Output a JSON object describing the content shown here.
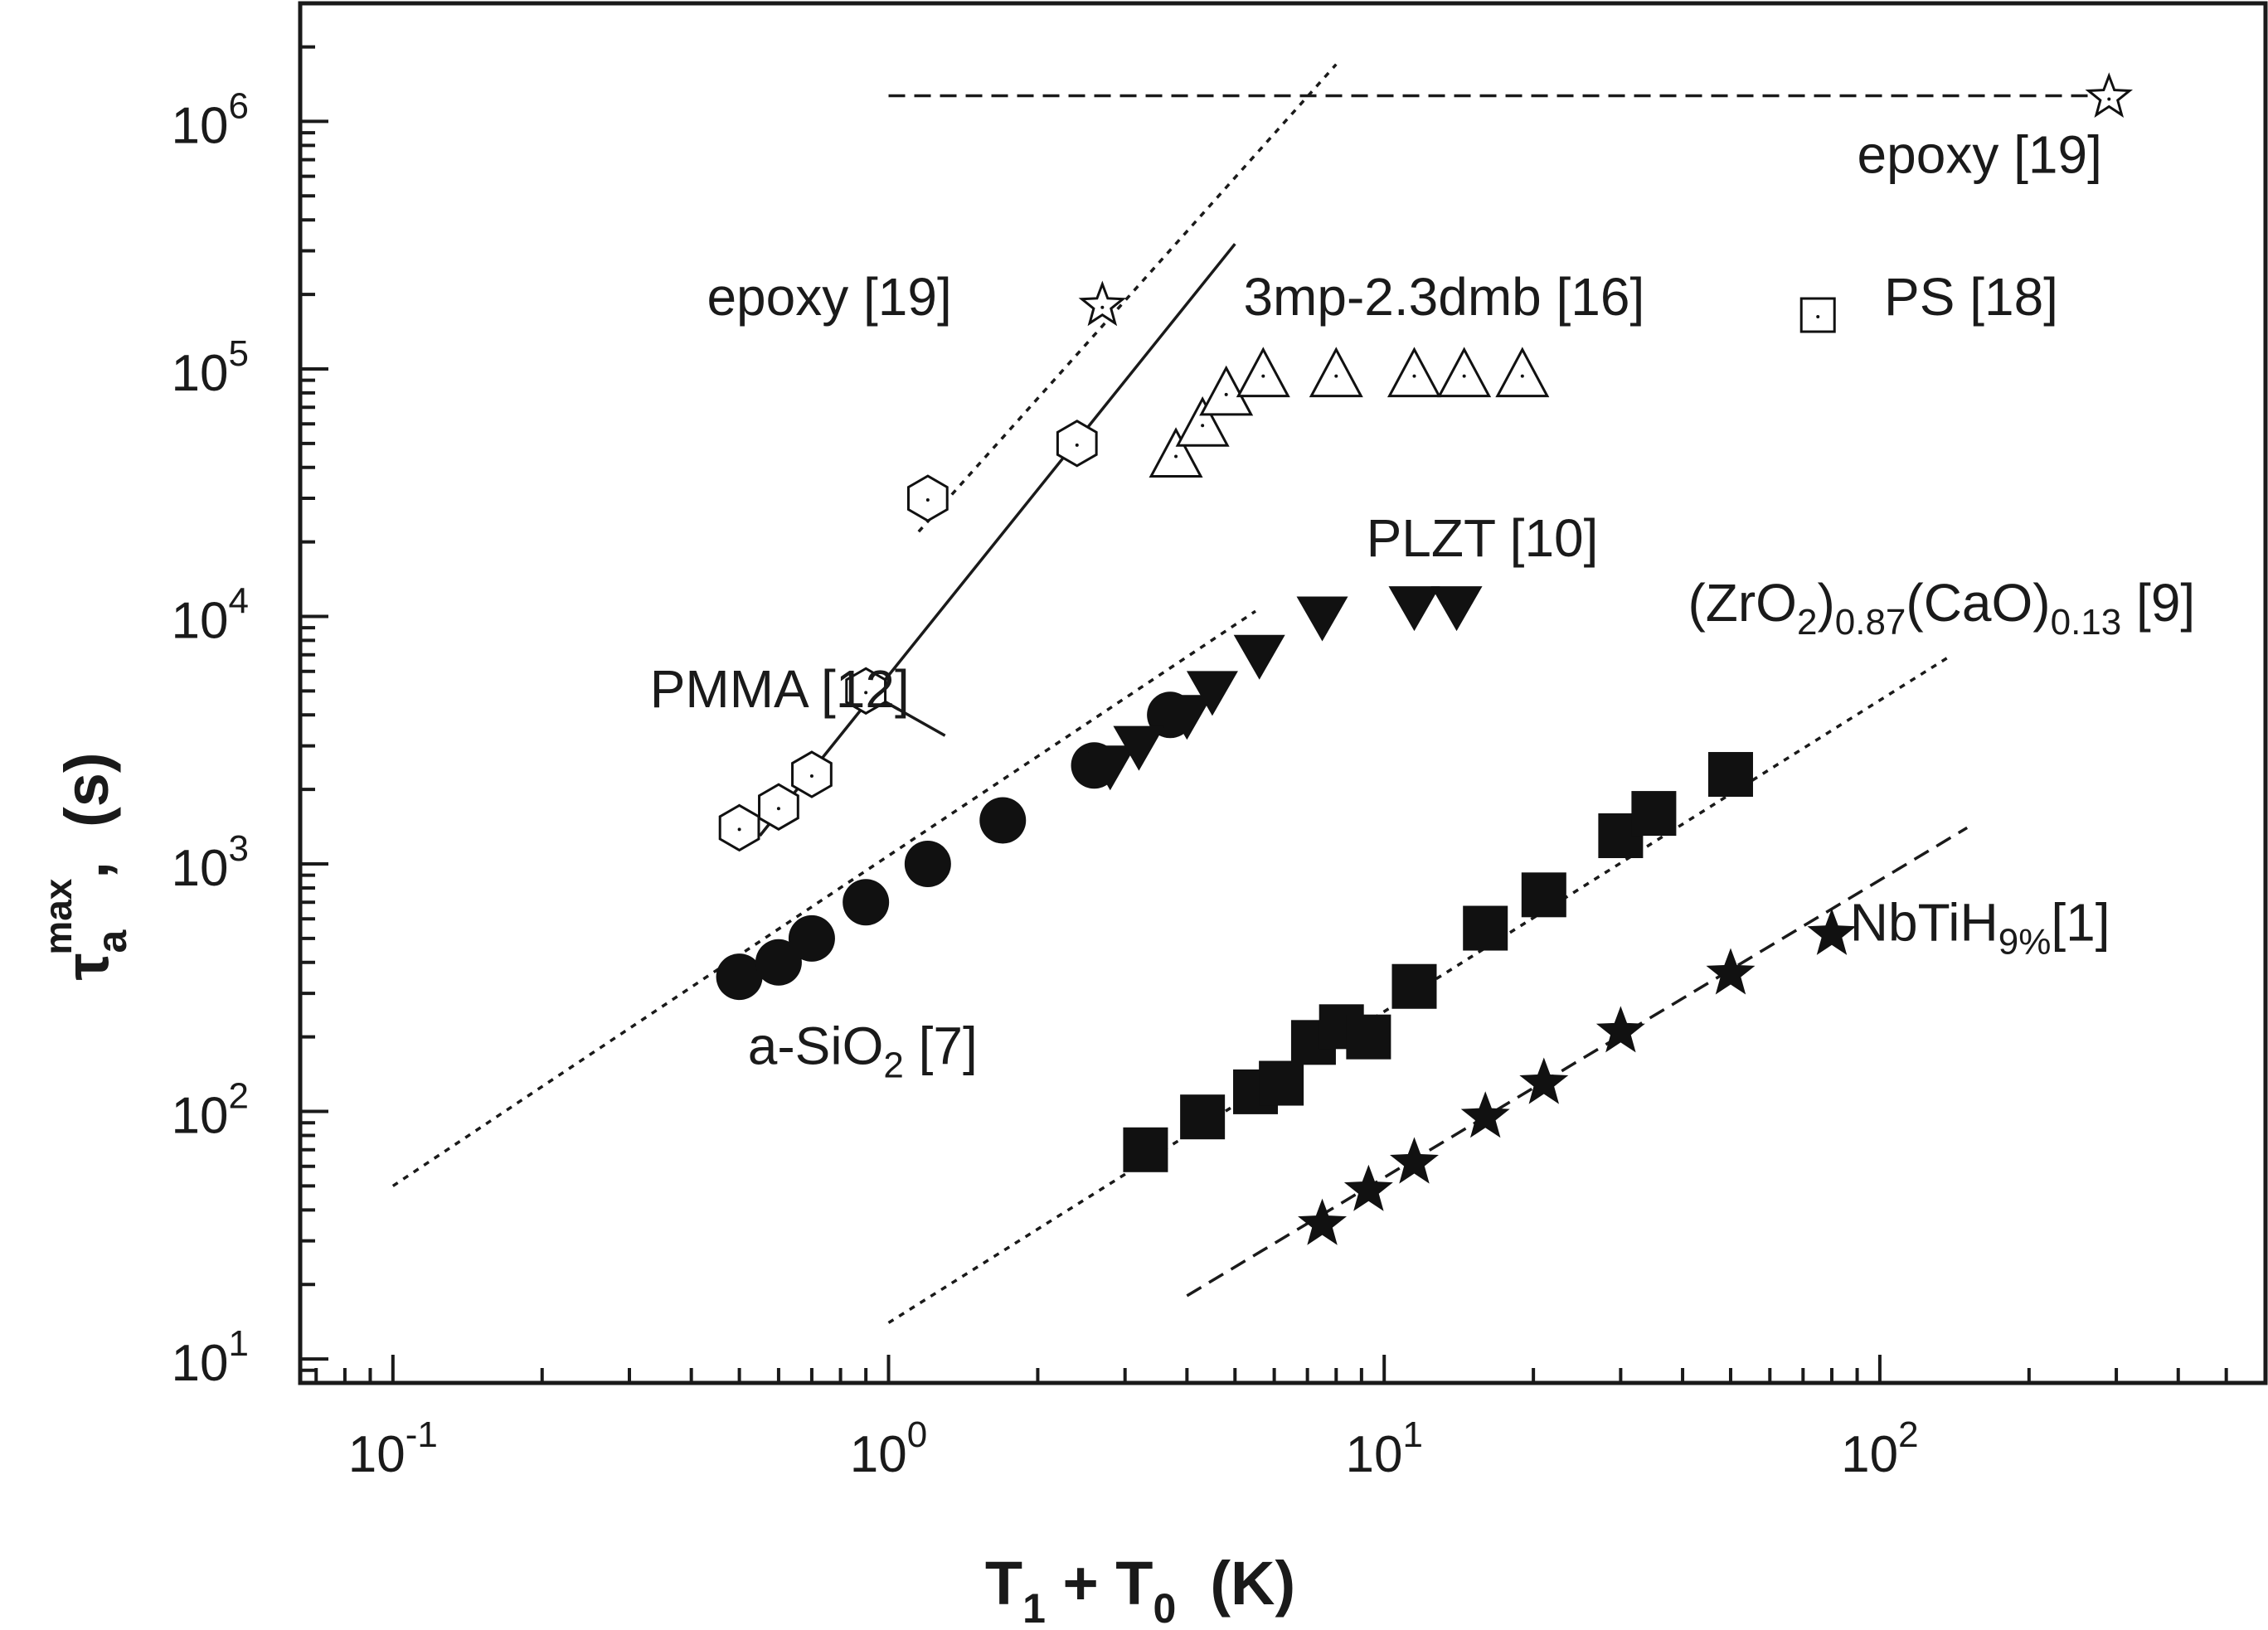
{
  "chart_data": {
    "type": "scatter",
    "x_scale": "log",
    "y_scale": "log",
    "xlim": [
      0.065,
      600
    ],
    "ylim": [
      8,
      3000000
    ],
    "xlabel": {
      "main1": "T",
      "sub1": "1",
      "mid": " + T",
      "sub2": "0",
      "end": "  (K)"
    },
    "ylabel": {
      "sym": "τ",
      "sub": "a",
      "sup": "max",
      "end": ",  (s)"
    },
    "x_ticks": [
      {
        "value": 0.1,
        "base": "10",
        "exp": "-1"
      },
      {
        "value": 1,
        "base": "10",
        "exp": "0"
      },
      {
        "value": 10,
        "base": "10",
        "exp": "1"
      },
      {
        "value": 100,
        "base": "10",
        "exp": "2"
      }
    ],
    "y_ticks": [
      {
        "value": 10,
        "base": "10",
        "exp": "1"
      },
      {
        "value": 100,
        "base": "10",
        "exp": "2"
      },
      {
        "value": 1000,
        "base": "10",
        "exp": "3"
      },
      {
        "value": 10000,
        "base": "10",
        "exp": "4"
      },
      {
        "value": 100000,
        "base": "10",
        "exp": "5"
      },
      {
        "value": 1000000,
        "base": "10",
        "exp": "6"
      }
    ],
    "series": [
      {
        "name": "a-SiO2 [7]",
        "marker": "circle",
        "filled": true,
        "points": [
          [
            0.5,
            350
          ],
          [
            0.6,
            400
          ],
          [
            0.7,
            500
          ],
          [
            0.9,
            700
          ],
          [
            1.2,
            1000
          ],
          [
            1.7,
            1500
          ],
          [
            2.6,
            2500
          ],
          [
            3.7,
            4000
          ]
        ]
      },
      {
        "name": "PLZT [10]",
        "marker": "triangle-down",
        "filled": true,
        "points": [
          [
            2.8,
            2500
          ],
          [
            3.2,
            3000
          ],
          [
            4.0,
            4000
          ],
          [
            4.5,
            5000
          ],
          [
            5.6,
            7000
          ],
          [
            7.5,
            10000
          ],
          [
            11.5,
            11000
          ],
          [
            14,
            11000
          ]
        ]
      },
      {
        "name": "(ZrO2)0.87(CaO)0.13 [9]",
        "marker": "square",
        "filled": true,
        "points": [
          [
            3.3,
            70
          ],
          [
            4.3,
            95
          ],
          [
            5.5,
            120
          ],
          [
            6.2,
            130
          ],
          [
            7.2,
            190
          ],
          [
            8.2,
            220
          ],
          [
            9.3,
            200
          ],
          [
            11.5,
            320
          ],
          [
            16,
            550
          ],
          [
            21,
            750
          ],
          [
            30,
            1300
          ],
          [
            35,
            1600
          ],
          [
            50,
            2300
          ]
        ]
      },
      {
        "name": "NbTiH9% [1]",
        "marker": "star",
        "filled": true,
        "points": [
          [
            7.5,
            35
          ],
          [
            9.3,
            48
          ],
          [
            11.5,
            62
          ],
          [
            16,
            95
          ],
          [
            21,
            130
          ],
          [
            30,
            210
          ],
          [
            50,
            360
          ],
          [
            80,
            520
          ]
        ]
      },
      {
        "name": "PMMA [12]",
        "marker": "hexagon",
        "filled": false,
        "points": [
          [
            0.5,
            1400
          ],
          [
            0.6,
            1700
          ],
          [
            0.7,
            2300
          ],
          [
            0.9,
            5000
          ],
          [
            2.4,
            50000
          ]
        ]
      },
      {
        "name": "epoxy [19]",
        "marker": "hexagon",
        "filled": false,
        "points": [
          [
            1.2,
            30000
          ]
        ]
      },
      {
        "name": "3mp-2.3dmb [16]",
        "marker": "triangle-up",
        "filled": false,
        "points": [
          [
            3.8,
            45000
          ],
          [
            4.3,
            60000
          ],
          [
            4.8,
            80000
          ],
          [
            5.7,
            95000
          ],
          [
            8,
            95000
          ],
          [
            11.5,
            95000
          ],
          [
            14.5,
            95000
          ],
          [
            19,
            95000
          ]
        ]
      },
      {
        "name": "epoxy [19] star (open)",
        "marker": "star",
        "filled": false,
        "points": [
          [
            2.7,
            180000
          ],
          [
            290,
            1250000
          ]
        ]
      },
      {
        "name": "PS [18]",
        "marker": "square",
        "filled": false,
        "points": []
      }
    ],
    "fit_lines": [
      {
        "style": "dotted",
        "from": [
          0.1,
          50
        ],
        "to": [
          5.5,
          10500
        ]
      },
      {
        "style": "dotted",
        "from": [
          1.0,
          14
        ],
        "to": [
          140,
          7000
        ]
      },
      {
        "style": "dashed",
        "from": [
          4.0,
          18
        ],
        "to": [
          150,
          1400
        ]
      },
      {
        "style": "solid",
        "from": [
          0.55,
          1300
        ],
        "to": [
          5.0,
          320000
        ]
      },
      {
        "style": "dotted",
        "from": [
          1.15,
          22000
        ],
        "to": [
          8,
          1700000
        ]
      },
      {
        "style": "dashed",
        "from": [
          1.0,
          1270000
        ],
        "to": [
          290,
          1270000
        ]
      },
      {
        "style": "solid",
        "from": [
          0.9,
          5000
        ],
        "to": [
          1.05,
          4200
        ]
      },
      {
        "style": "solid",
        "from": [
          0.9,
          5000
        ],
        "to": [
          1.3,
          3300
        ]
      }
    ],
    "annotations": [
      {
        "id": "epoxy-top-right",
        "x": 90,
        "y": 620000,
        "parts": [
          {
            "t": "epoxy [19]"
          }
        ]
      },
      {
        "id": "epoxy-left",
        "x": 0.43,
        "y": 165000,
        "parts": [
          {
            "t": "epoxy [19]"
          }
        ]
      },
      {
        "id": "3mp",
        "x": 5.2,
        "y": 165000,
        "parts": [
          {
            "t": "3mp-2.3dmb [16]"
          }
        ]
      },
      {
        "id": "ps",
        "x": 102,
        "y": 165000,
        "parts": [
          {
            "t": "PS [18]"
          }
        ]
      },
      {
        "id": "plzt",
        "x": 9.2,
        "y": 17500,
        "parts": [
          {
            "t": "PLZT [10]"
          }
        ]
      },
      {
        "id": "zro2",
        "x": 41,
        "y": 9600,
        "parts": [
          {
            "t": "(ZrO"
          },
          {
            "t": "2",
            "sub": true
          },
          {
            "t": ")"
          },
          {
            "t": "0.87",
            "sub": true
          },
          {
            "t": "(CaO)"
          },
          {
            "t": "0.13",
            "sub": true
          },
          {
            "t": " [9]"
          }
        ]
      },
      {
        "id": "pmma",
        "x": 0.33,
        "y": 4300,
        "parts": [
          {
            "t": "PMMA [12]"
          }
        ]
      },
      {
        "id": "nbtih",
        "x": 87,
        "y": 490,
        "parts": [
          {
            "t": "NbTiH"
          },
          {
            "t": "9%",
            "sub": true
          },
          {
            "t": "[1]"
          }
        ]
      },
      {
        "id": "asio2",
        "x": 0.52,
        "y": 155,
        "parts": [
          {
            "t": "a-SiO"
          },
          {
            "t": "2",
            "sub": true
          },
          {
            "t": " [7]"
          }
        ]
      }
    ],
    "legend_marker_ps": {
      "x": 75,
      "y": 165000
    },
    "grid": false
  }
}
